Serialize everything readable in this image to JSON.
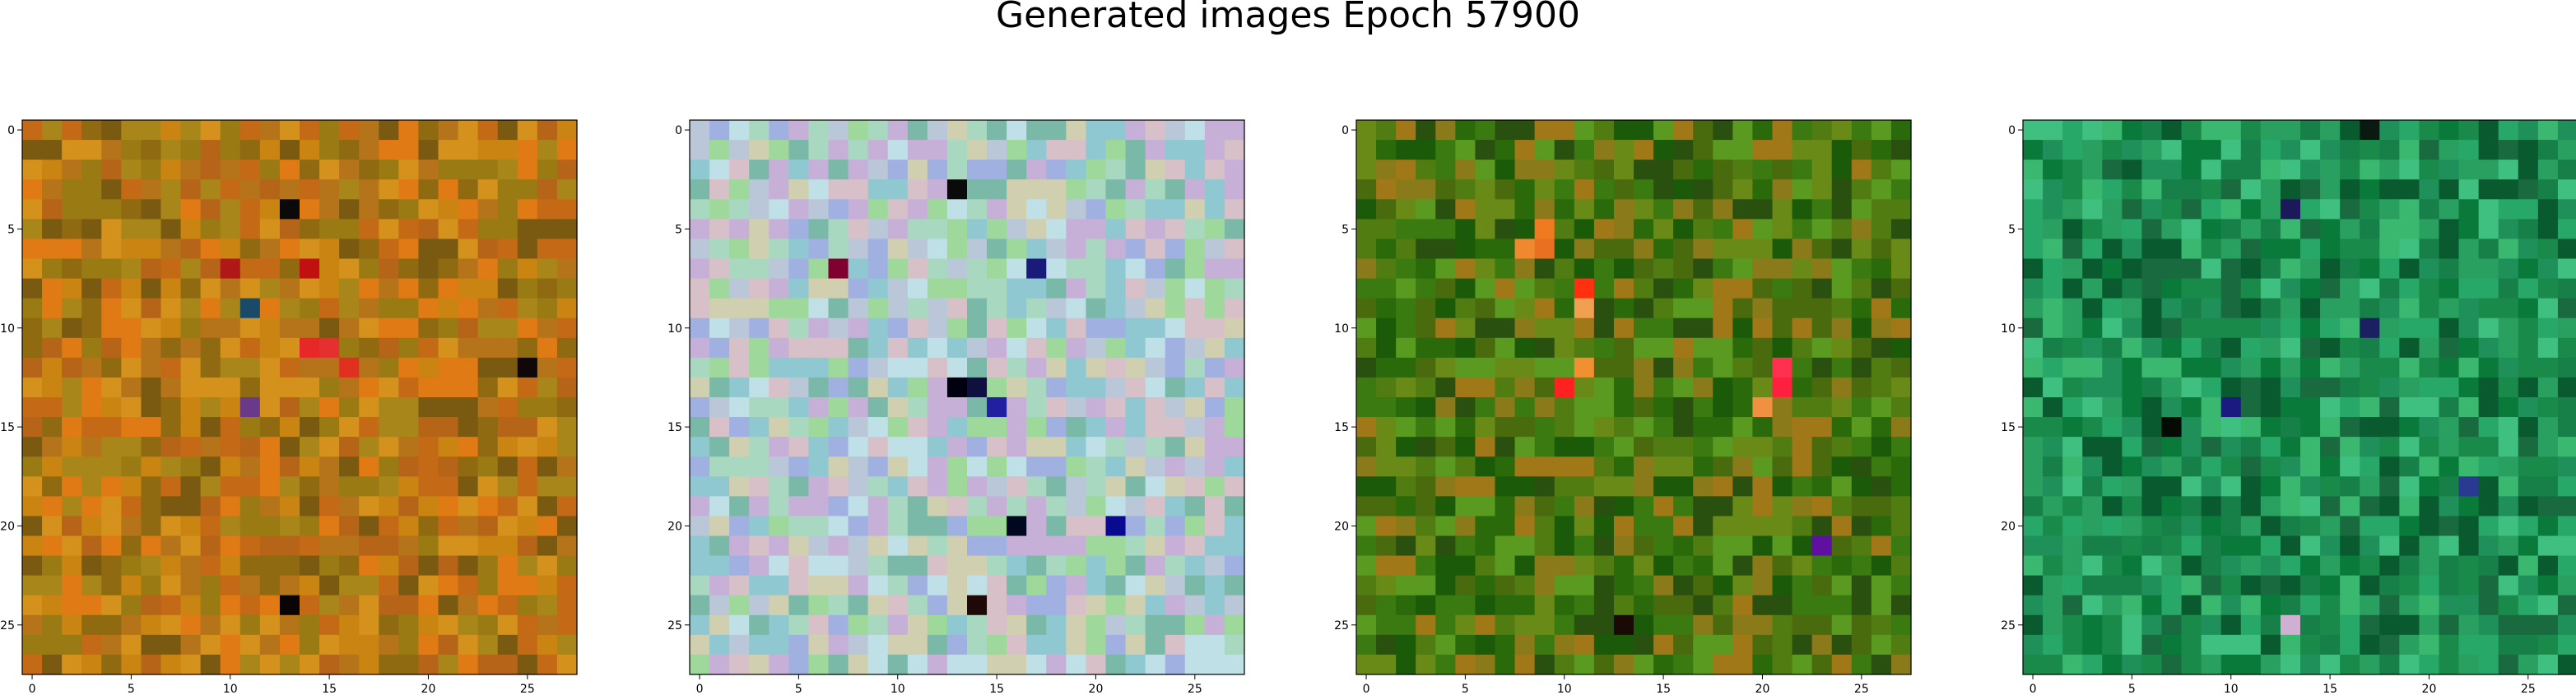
{
  "title": "Generated images Epoch 57900",
  "chart_data": [
    {
      "type": "heatmap",
      "title": "",
      "grid_size": [
        28,
        28
      ],
      "xlim": [
        -0.5,
        27.5
      ],
      "ylim": [
        27.5,
        -0.5
      ],
      "xticks": [
        0,
        5,
        10,
        15,
        20,
        25
      ],
      "yticks": [
        0,
        5,
        10,
        15,
        20,
        25
      ],
      "palette": [
        "#b5731a",
        "#c98412",
        "#a9861a",
        "#8f6a10",
        "#d4911c",
        "#b56418",
        "#9a7a12",
        "#c46a16",
        "#7a5a10",
        "#e07a14"
      ],
      "highlights": [
        {
          "row": 4,
          "col": 13,
          "color": "#0a0a0a"
        },
        {
          "row": 7,
          "col": 10,
          "color": "#b01818"
        },
        {
          "row": 7,
          "col": 14,
          "color": "#c01010"
        },
        {
          "row": 9,
          "col": 11,
          "color": "#1a4a6a"
        },
        {
          "row": 11,
          "col": 14,
          "color": "#e82828"
        },
        {
          "row": 11,
          "col": 15,
          "color": "#e63030"
        },
        {
          "row": 12,
          "col": 16,
          "color": "#e03020"
        },
        {
          "row": 12,
          "col": 25,
          "color": "#100808"
        },
        {
          "row": 14,
          "col": 11,
          "color": "#6a3a8a"
        },
        {
          "row": 24,
          "col": 13,
          "color": "#0a0505"
        }
      ]
    },
    {
      "type": "heatmap",
      "title": "",
      "grid_size": [
        28,
        28
      ],
      "xlim": [
        -0.5,
        27.5
      ],
      "ylim": [
        27.5,
        -0.5
      ],
      "xticks": [
        0,
        5,
        10,
        15,
        20,
        25
      ],
      "yticks": [
        0,
        5,
        10,
        15,
        20,
        25
      ],
      "palette": [
        "#b9c7d8",
        "#a9d8c0",
        "#c7b0d8",
        "#8fc8d0",
        "#d8c0c8",
        "#9ed89a",
        "#a0b0e0",
        "#c0e0e8",
        "#7ab8a8",
        "#d0d0b0"
      ],
      "highlights": [
        {
          "row": 3,
          "col": 13,
          "color": "#0a0a0a"
        },
        {
          "row": 7,
          "col": 7,
          "color": "#800030"
        },
        {
          "row": 7,
          "col": 17,
          "color": "#1a1a7a"
        },
        {
          "row": 13,
          "col": 13,
          "color": "#000010"
        },
        {
          "row": 13,
          "col": 14,
          "color": "#101040"
        },
        {
          "row": 14,
          "col": 15,
          "color": "#2020a0"
        },
        {
          "row": 20,
          "col": 16,
          "color": "#000820"
        },
        {
          "row": 20,
          "col": 21,
          "color": "#0a0a90"
        },
        {
          "row": 24,
          "col": 14,
          "color": "#200808"
        }
      ]
    },
    {
      "type": "heatmap",
      "title": "",
      "grid_size": [
        28,
        28
      ],
      "xlim": [
        -0.5,
        27.5
      ],
      "ylim": [
        27.5,
        -0.5
      ],
      "xticks": [
        0,
        5,
        10,
        15,
        20,
        25
      ],
      "yticks": [
        0,
        5,
        10,
        15,
        20,
        25
      ],
      "palette": [
        "#3a7a10",
        "#507c12",
        "#2a6a0a",
        "#6a8a18",
        "#8a7a1a",
        "#1a5a08",
        "#4a6a0e",
        "#a07818",
        "#2a5010",
        "#5a9a20"
      ],
      "highlights": [
        {
          "row": 5,
          "col": 9,
          "color": "#f07a20"
        },
        {
          "row": 6,
          "col": 8,
          "color": "#f08830"
        },
        {
          "row": 6,
          "col": 9,
          "color": "#e87020"
        },
        {
          "row": 8,
          "col": 11,
          "color": "#ff3010"
        },
        {
          "row": 9,
          "col": 11,
          "color": "#f0a050"
        },
        {
          "row": 13,
          "col": 10,
          "color": "#ff2020"
        },
        {
          "row": 12,
          "col": 11,
          "color": "#f09030"
        },
        {
          "row": 12,
          "col": 21,
          "color": "#ff3050"
        },
        {
          "row": 13,
          "col": 21,
          "color": "#ff2040"
        },
        {
          "row": 14,
          "col": 20,
          "color": "#f09040"
        },
        {
          "row": 21,
          "col": 23,
          "color": "#6010a0"
        },
        {
          "row": 25,
          "col": 13,
          "color": "#1a0a05"
        }
      ]
    },
    {
      "type": "heatmap",
      "title": "",
      "grid_size": [
        28,
        28
      ],
      "xlim": [
        -0.5,
        27.5
      ],
      "ylim": [
        27.5,
        -0.5
      ],
      "xticks": [
        0,
        5,
        10,
        15,
        20,
        25
      ],
      "yticks": [
        0,
        5,
        10,
        15,
        20,
        25
      ],
      "palette": [
        "#1a8a4a",
        "#2aa060",
        "#0a7a3a",
        "#3ab870",
        "#1a6a40",
        "#20905a",
        "#40c080",
        "#0a5a30",
        "#28a868",
        "#168048"
      ],
      "highlights": [
        {
          "row": 0,
          "col": 17,
          "color": "#0a1a10"
        },
        {
          "row": 4,
          "col": 13,
          "color": "#1a1a5a"
        },
        {
          "row": 10,
          "col": 17,
          "color": "#1a2060"
        },
        {
          "row": 14,
          "col": 10,
          "color": "#1a1a80"
        },
        {
          "row": 15,
          "col": 7,
          "color": "#050a05"
        },
        {
          "row": 18,
          "col": 22,
          "color": "#2a3a90"
        },
        {
          "row": 25,
          "col": 13,
          "color": "#d0b0d0"
        }
      ]
    }
  ]
}
